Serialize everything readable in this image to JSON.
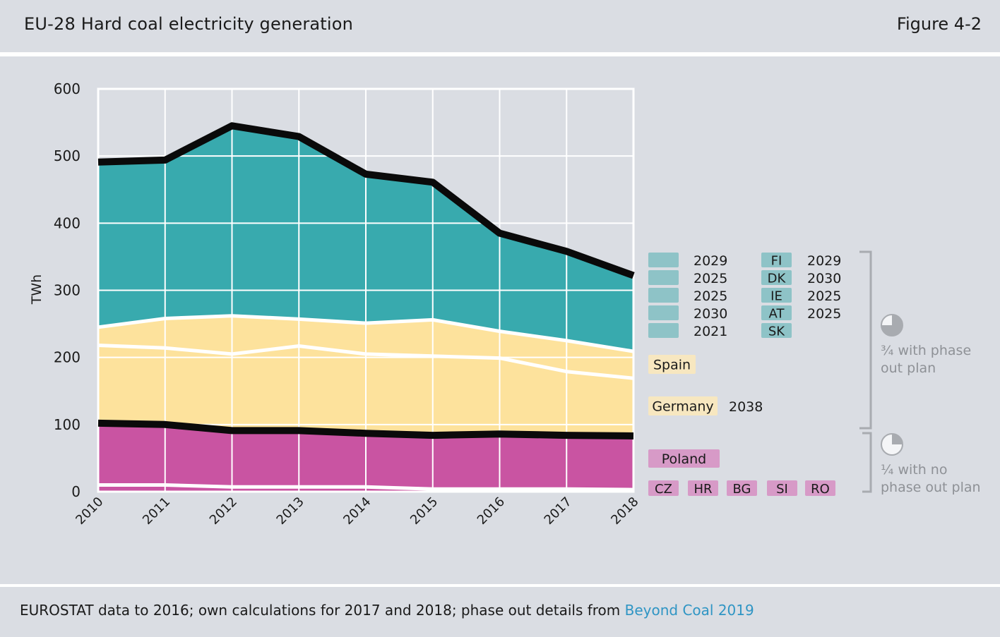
{
  "header": {
    "title": "EU-28 Hard coal electricity generation",
    "figure_label": "Figure 4-2"
  },
  "footer": {
    "source_text": "EUROSTAT data to 2016; own calculations for 2017 and 2018; phase out details from ",
    "source_link": "Beyond Coal 2019"
  },
  "colors": {
    "teal": "#38aaae",
    "yellow": "#fde29c",
    "magenta": "#c954a2",
    "black": "#0a0a0a",
    "white": "#ffffff",
    "teal_label": "#8ec3c7",
    "yellow_label": "#f7e7c0",
    "magenta_label": "#d79ac7",
    "bracket": "#a8abb0",
    "panel": "#dadde3"
  },
  "chart_data": {
    "type": "area",
    "ylabel": "TWh",
    "xlabel": "",
    "ylim": [
      0,
      600
    ],
    "yticks": [
      "0",
      "100",
      "200",
      "300",
      "400",
      "500",
      "600"
    ],
    "x": [
      "2010",
      "2011",
      "2012",
      "2013",
      "2014",
      "2015",
      "2016",
      "2017",
      "2018"
    ],
    "grid": true,
    "series": [
      {
        "name": "",
        "color": "magenta",
        "values": [
          10,
          10,
          7,
          7,
          7,
          4,
          4,
          4,
          3
        ]
      },
      {
        "name": "Poland",
        "color": "magenta",
        "values": [
          92,
          90,
          84,
          84,
          80,
          80,
          82,
          80,
          80
        ]
      },
      {
        "name": "Germany",
        "color": "yellow",
        "values": [
          116,
          114,
          114,
          126,
          118,
          118,
          113,
          95,
          86
        ]
      },
      {
        "name": "Spain",
        "color": "yellow",
        "values": [
          27,
          44,
          57,
          40,
          46,
          54,
          40,
          46,
          40
        ]
      },
      {
        "name": "",
        "color": "teal",
        "values": [
          244,
          236,
          283,
          272,
          223,
          205,
          146,
          133,
          113
        ]
      }
    ],
    "total_line_values": [
      491,
      494,
      545,
      529,
      473,
      461,
      385,
      358,
      322
    ],
    "labels": {
      "teal_group": {
        "col1": [
          {
            "code": "",
            "year": "2029"
          },
          {
            "code": "",
            "year": "2025"
          },
          {
            "code": "",
            "year": "2025"
          },
          {
            "code": "",
            "year": "2030"
          },
          {
            "code": "",
            "year": "2021"
          }
        ],
        "col2": [
          {
            "code": "FI",
            "year": "2029"
          },
          {
            "code": "DK",
            "year": "2030"
          },
          {
            "code": "IE",
            "year": "2025"
          },
          {
            "code": "AT",
            "year": "2025"
          },
          {
            "code": "SK",
            "year": ""
          }
        ]
      },
      "spain": {
        "name": "Spain",
        "year": ""
      },
      "germany": {
        "name": "Germany",
        "year": "2038"
      },
      "poland": {
        "name": "Poland"
      },
      "small_countries": [
        "CZ",
        "HR",
        "BG",
        "SI",
        "RO"
      ]
    },
    "brackets": [
      {
        "fraction": 0.75,
        "text_line1": "¾ with phase",
        "text_line2": "out plan"
      },
      {
        "fraction": 0.25,
        "text_line1": "¼ with no",
        "text_line2": "phase out plan"
      }
    ]
  }
}
